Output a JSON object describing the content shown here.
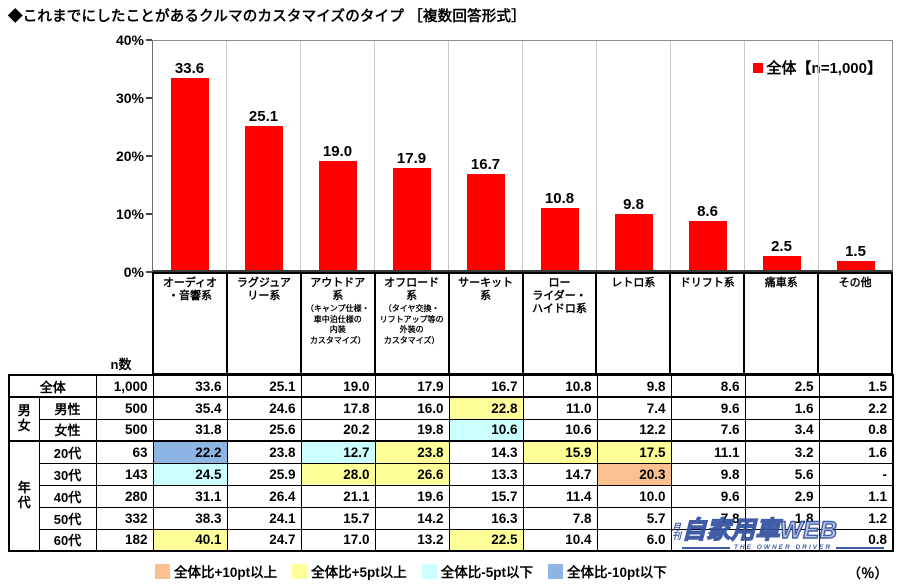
{
  "title": "◆これまでにしたことがあるクルマのカスタマイズのタイプ ［複数回答形式］",
  "chart_data": {
    "type": "bar",
    "title": "これまでにしたことがあるクルマのカスタマイズのタイプ（複数回答形式）",
    "legend": "全体【n=1,000】",
    "legend_position": "top-right",
    "bar_color": "#FF0000",
    "ylim": [
      0,
      40
    ],
    "ytick_labels": [
      "40%",
      "30%",
      "20%",
      "10%",
      "0%"
    ],
    "grid": "vertical-category-separators",
    "categories": [
      "オーディオ・音響系",
      "ラグジュアリー系",
      "アウトドア系（キャンプ仕様・車中泊仕様の内装カスタマイズ）",
      "オフロード系（タイヤ交換・リフトアップ等の外装のカスタマイズ）",
      "サーキット系",
      "ローライダー・ハイドロ系",
      "レトロ系",
      "ドリフト系",
      "痛車系",
      "その他"
    ],
    "values": [
      33.6,
      25.1,
      19.0,
      17.9,
      16.7,
      10.8,
      9.8,
      8.6,
      2.5,
      1.5
    ]
  },
  "category_boxes": [
    {
      "label": "オーディオ\n・音響系",
      "note": ""
    },
    {
      "label": "ラグジュア\nリー系",
      "note": ""
    },
    {
      "label": "アウトドア\n系",
      "note": "（キャンプ仕様・\n車中泊仕様の\n内装\nカスタマイズ）"
    },
    {
      "label": "オフロード\n系",
      "note": "（タイヤ交換・\nリフトアップ等の\n外装の\nカスタマイズ）"
    },
    {
      "label": "サーキット\n系",
      "note": ""
    },
    {
      "label": "ロー\nライダー・\nハイドロ系",
      "note": ""
    },
    {
      "label": "レトロ系",
      "note": ""
    },
    {
      "label": "ドリフト系",
      "note": ""
    },
    {
      "label": "痛車系",
      "note": ""
    },
    {
      "label": "その他",
      "note": ""
    }
  ],
  "table": {
    "n_header": "n数",
    "groups": [
      {
        "label": "",
        "rows": [
          {
            "label": "全体",
            "n": "1,000",
            "cells": [
              [
                "33.6",
                ""
              ],
              [
                "25.1",
                ""
              ],
              [
                "19.0",
                ""
              ],
              [
                "17.9",
                ""
              ],
              [
                "16.7",
                ""
              ],
              [
                "10.8",
                ""
              ],
              [
                "9.8",
                ""
              ],
              [
                "8.6",
                ""
              ],
              [
                "2.5",
                ""
              ],
              [
                "1.5",
                ""
              ]
            ]
          }
        ]
      },
      {
        "label": "男女",
        "rows": [
          {
            "label": "男性",
            "n": "500",
            "cells": [
              [
                "35.4",
                ""
              ],
              [
                "24.6",
                ""
              ],
              [
                "17.8",
                ""
              ],
              [
                "16.0",
                ""
              ],
              [
                "22.8",
                "y"
              ],
              [
                "11.0",
                ""
              ],
              [
                "7.4",
                ""
              ],
              [
                "9.6",
                ""
              ],
              [
                "1.6",
                ""
              ],
              [
                "2.2",
                ""
              ]
            ]
          },
          {
            "label": "女性",
            "n": "500",
            "cells": [
              [
                "31.8",
                ""
              ],
              [
                "25.6",
                ""
              ],
              [
                "20.2",
                ""
              ],
              [
                "19.8",
                ""
              ],
              [
                "10.6",
                "c"
              ],
              [
                "10.6",
                ""
              ],
              [
                "12.2",
                ""
              ],
              [
                "7.6",
                ""
              ],
              [
                "3.4",
                ""
              ],
              [
                "0.8",
                ""
              ]
            ]
          }
        ]
      },
      {
        "label": "年代",
        "rows": [
          {
            "label": "20代",
            "n": "63",
            "cells": [
              [
                "22.2",
                "b"
              ],
              [
                "23.8",
                ""
              ],
              [
                "12.7",
                "c"
              ],
              [
                "23.8",
                "y"
              ],
              [
                "14.3",
                ""
              ],
              [
                "15.9",
                "y"
              ],
              [
                "17.5",
                "y"
              ],
              [
                "11.1",
                ""
              ],
              [
                "3.2",
                ""
              ],
              [
                "1.6",
                ""
              ]
            ]
          },
          {
            "label": "30代",
            "n": "143",
            "cells": [
              [
                "24.5",
                "c"
              ],
              [
                "25.9",
                ""
              ],
              [
                "28.0",
                "y"
              ],
              [
                "26.6",
                "y"
              ],
              [
                "13.3",
                ""
              ],
              [
                "14.7",
                ""
              ],
              [
                "20.3",
                "o"
              ],
              [
                "9.8",
                ""
              ],
              [
                "5.6",
                ""
              ],
              [
                "-",
                ""
              ]
            ]
          },
          {
            "label": "40代",
            "n": "280",
            "cells": [
              [
                "31.1",
                ""
              ],
              [
                "26.4",
                ""
              ],
              [
                "21.1",
                ""
              ],
              [
                "19.6",
                ""
              ],
              [
                "15.7",
                ""
              ],
              [
                "11.4",
                ""
              ],
              [
                "10.0",
                ""
              ],
              [
                "9.6",
                ""
              ],
              [
                "2.9",
                ""
              ],
              [
                "1.1",
                ""
              ]
            ]
          },
          {
            "label": "50代",
            "n": "332",
            "cells": [
              [
                "38.3",
                ""
              ],
              [
                "24.1",
                ""
              ],
              [
                "15.7",
                ""
              ],
              [
                "14.2",
                ""
              ],
              [
                "16.3",
                ""
              ],
              [
                "7.8",
                ""
              ],
              [
                "5.7",
                ""
              ],
              [
                "7.8",
                ""
              ],
              [
                "1.8",
                ""
              ],
              [
                "1.2",
                ""
              ]
            ]
          },
          {
            "label": "60代",
            "n": "182",
            "cells": [
              [
                "40.1",
                "y"
              ],
              [
                "24.7",
                ""
              ],
              [
                "17.0",
                ""
              ],
              [
                "13.2",
                ""
              ],
              [
                "22.5",
                "y"
              ],
              [
                "10.4",
                ""
              ],
              [
                "6.0",
                ""
              ],
              [
                "",
                ""
              ],
              [
                "",
                ""
              ],
              [
                "0.8",
                ""
              ]
            ]
          }
        ]
      }
    ]
  },
  "footer_legend": {
    "items": [
      {
        "label": "全体比+10pt以上",
        "color": "#FAC090"
      },
      {
        "label": "全体比+5pt以上",
        "color": "#FFFF99"
      },
      {
        "label": "全体比-5pt以下",
        "color": "#CCFFFF"
      },
      {
        "label": "全体比-10pt以下",
        "color": "#8DB4E2"
      }
    ],
    "unit": "（％）"
  },
  "watermark": {
    "prefix": "月刊",
    "main": "自家用車WEB",
    "sub": "THE OWNER DRIVER"
  }
}
